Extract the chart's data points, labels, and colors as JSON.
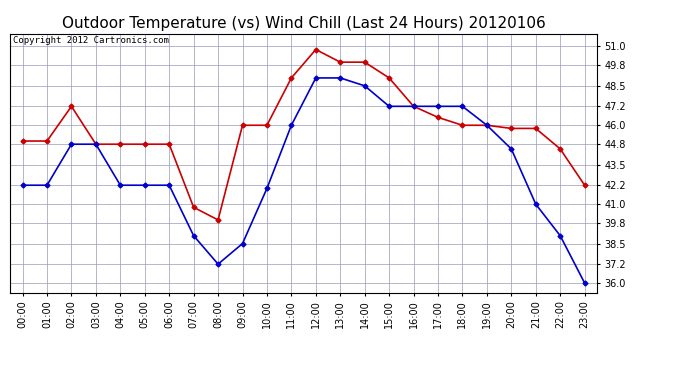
{
  "title": "Outdoor Temperature (vs) Wind Chill (Last 24 Hours) 20120106",
  "copyright": "Copyright 2012 Cartronics.com",
  "hours": [
    "00:00",
    "01:00",
    "02:00",
    "03:00",
    "04:00",
    "05:00",
    "06:00",
    "07:00",
    "08:00",
    "09:00",
    "10:00",
    "11:00",
    "12:00",
    "13:00",
    "14:00",
    "15:00",
    "16:00",
    "17:00",
    "18:00",
    "19:00",
    "20:00",
    "21:00",
    "22:00",
    "23:00"
  ],
  "temp": [
    45.0,
    45.0,
    47.2,
    44.8,
    44.8,
    44.8,
    44.8,
    40.8,
    40.0,
    46.0,
    46.0,
    49.0,
    50.8,
    50.0,
    50.0,
    49.0,
    47.2,
    46.5,
    46.0,
    46.0,
    45.8,
    45.8,
    44.5,
    42.2
  ],
  "windchill": [
    42.2,
    42.2,
    44.8,
    44.8,
    42.2,
    42.2,
    42.2,
    39.0,
    37.2,
    38.5,
    42.0,
    46.0,
    49.0,
    49.0,
    48.5,
    47.2,
    47.2,
    47.2,
    47.2,
    46.0,
    44.5,
    41.0,
    39.0,
    36.0
  ],
  "temp_color": "#cc0000",
  "windchill_color": "#0000cc",
  "ylim_min": 35.4,
  "ylim_max": 51.8,
  "yticks": [
    36.0,
    37.2,
    38.5,
    39.8,
    41.0,
    42.2,
    43.5,
    44.8,
    46.0,
    47.2,
    48.5,
    49.8,
    51.0
  ],
  "bg_color": "#ffffff",
  "plot_bg_color": "#ffffff",
  "grid_color": "#9999bb",
  "title_fontsize": 11,
  "copyright_fontsize": 6.5,
  "tick_fontsize": 7,
  "marker": "D",
  "markersize": 2.5,
  "linewidth": 1.2
}
